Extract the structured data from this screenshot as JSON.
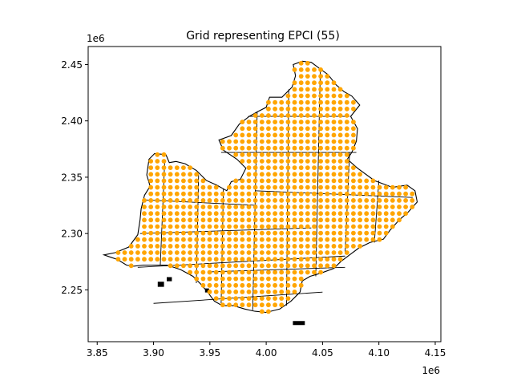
{
  "chart_data": {
    "type": "scatter",
    "title": "Grid representing EPCI (55)",
    "xlabel": "",
    "ylabel": "",
    "x_offset_label": "1e6",
    "y_offset_label": "1e6",
    "xlim": [
      3.842,
      4.155
    ],
    "ylim": [
      2.204,
      2.466
    ],
    "xticks": [
      3.85,
      3.9,
      3.95,
      4.0,
      4.05,
      4.1,
      4.15
    ],
    "xtick_labels": [
      "3.85",
      "3.90",
      "3.95",
      "4.00",
      "4.05",
      "4.10",
      "4.15"
    ],
    "yticks": [
      2.25,
      2.3,
      2.35,
      2.4,
      2.45
    ],
    "ytick_labels": [
      "2.25",
      "2.30",
      "2.35",
      "2.40",
      "2.45"
    ],
    "grid": false,
    "point_color": "#FFA500",
    "outline_color": "#000000",
    "outline": [
      [
        3.856,
        2.281
      ],
      [
        3.866,
        2.283
      ],
      [
        3.878,
        2.288
      ],
      [
        3.886,
        2.299
      ],
      [
        3.888,
        2.312
      ],
      [
        3.889,
        2.322
      ],
      [
        3.892,
        2.334
      ],
      [
        3.897,
        2.342
      ],
      [
        3.894,
        2.352
      ],
      [
        3.896,
        2.366
      ],
      [
        3.901,
        2.371
      ],
      [
        3.911,
        2.37
      ],
      [
        3.914,
        2.363
      ],
      [
        3.92,
        2.364
      ],
      [
        3.928,
        2.362
      ],
      [
        3.938,
        2.356
      ],
      [
        3.947,
        2.347
      ],
      [
        3.956,
        2.343
      ],
      [
        3.965,
        2.338
      ],
      [
        3.969,
        2.346
      ],
      [
        3.977,
        2.348
      ],
      [
        3.982,
        2.358
      ],
      [
        3.974,
        2.366
      ],
      [
        3.962,
        2.374
      ],
      [
        3.958,
        2.383
      ],
      [
        3.969,
        2.387
      ],
      [
        3.976,
        2.397
      ],
      [
        3.985,
        2.404
      ],
      [
        3.992,
        2.408
      ],
      [
        4.0,
        2.412
      ],
      [
        4.003,
        2.421
      ],
      [
        4.014,
        2.421
      ],
      [
        4.023,
        2.43
      ],
      [
        4.026,
        2.44
      ],
      [
        4.024,
        2.45
      ],
      [
        4.032,
        2.453
      ],
      [
        4.04,
        2.452
      ],
      [
        4.048,
        2.446
      ],
      [
        4.055,
        2.441
      ],
      [
        4.062,
        2.432
      ],
      [
        4.069,
        2.426
      ],
      [
        4.076,
        2.422
      ],
      [
        4.083,
        2.414
      ],
      [
        4.075,
        2.404
      ],
      [
        4.081,
        2.393
      ],
      [
        4.08,
        2.382
      ],
      [
        4.076,
        2.372
      ],
      [
        4.072,
        2.366
      ],
      [
        4.081,
        2.358
      ],
      [
        4.096,
        2.347
      ],
      [
        4.112,
        2.341
      ],
      [
        4.125,
        2.343
      ],
      [
        4.132,
        2.338
      ],
      [
        4.134,
        2.328
      ],
      [
        4.126,
        2.319
      ],
      [
        4.118,
        2.312
      ],
      [
        4.11,
        2.303
      ],
      [
        4.104,
        2.295
      ],
      [
        4.092,
        2.292
      ],
      [
        4.082,
        2.287
      ],
      [
        4.074,
        2.281
      ],
      [
        4.066,
        2.275
      ],
      [
        4.06,
        2.269
      ],
      [
        4.049,
        2.265
      ],
      [
        4.039,
        2.262
      ],
      [
        4.032,
        2.258
      ],
      [
        4.03,
        2.248
      ],
      [
        4.022,
        2.24
      ],
      [
        4.012,
        2.233
      ],
      [
        4.0,
        2.23
      ],
      [
        3.99,
        2.231
      ],
      [
        3.981,
        2.233
      ],
      [
        3.971,
        2.236
      ],
      [
        3.961,
        2.236
      ],
      [
        3.954,
        2.24
      ],
      [
        3.948,
        2.248
      ],
      [
        3.942,
        2.255
      ],
      [
        3.935,
        2.262
      ],
      [
        3.924,
        2.268
      ],
      [
        3.912,
        2.272
      ],
      [
        3.902,
        2.272
      ],
      [
        3.891,
        2.272
      ],
      [
        3.882,
        2.271
      ],
      [
        3.876,
        2.272
      ],
      [
        3.868,
        2.277
      ],
      [
        3.862,
        2.279
      ],
      [
        3.856,
        2.281
      ]
    ],
    "grid_lines": [
      [
        [
          3.89,
          2.33
        ],
        [
          3.992,
          2.325
        ]
      ],
      [
        [
          3.888,
          2.3
        ],
        [
          4.04,
          2.305
        ]
      ],
      [
        [
          3.886,
          2.27
        ],
        [
          4.07,
          2.28
        ]
      ],
      [
        [
          3.984,
          2.404
        ],
        [
          4.074,
          2.404
        ]
      ],
      [
        [
          3.96,
          2.372
        ],
        [
          4.08,
          2.372
        ]
      ],
      [
        [
          3.99,
          2.338
        ],
        [
          4.13,
          2.332
        ]
      ],
      [
        [
          3.95,
          2.266
        ],
        [
          4.07,
          2.27
        ]
      ],
      [
        [
          3.9,
          2.238
        ],
        [
          4.05,
          2.248
        ]
      ],
      [
        [
          3.91,
          2.366
        ],
        [
          3.906,
          2.272
        ]
      ],
      [
        [
          3.94,
          2.352
        ],
        [
          3.938,
          2.256
        ]
      ],
      [
        [
          3.962,
          2.34
        ],
        [
          3.96,
          2.238
        ]
      ],
      [
        [
          3.992,
          2.408
        ],
        [
          3.988,
          2.232
        ]
      ],
      [
        [
          4.02,
          2.428
        ],
        [
          4.018,
          2.236
        ]
      ],
      [
        [
          4.048,
          2.445
        ],
        [
          4.044,
          2.262
        ]
      ],
      [
        [
          4.074,
          2.372
        ],
        [
          4.07,
          2.282
        ]
      ],
      [
        [
          4.1,
          2.347
        ],
        [
          4.096,
          2.292
        ]
      ]
    ],
    "islands": [
      [
        [
          3.904,
          2.253
        ],
        [
          3.909,
          2.253
        ],
        [
          3.909,
          2.257
        ],
        [
          3.904,
          2.257
        ]
      ],
      [
        [
          3.912,
          2.258
        ],
        [
          3.916,
          2.258
        ],
        [
          3.916,
          2.261
        ],
        [
          3.912,
          2.261
        ]
      ],
      [
        [
          4.024,
          2.219
        ],
        [
          4.034,
          2.219
        ],
        [
          4.034,
          2.222
        ],
        [
          4.024,
          2.222
        ]
      ],
      [
        [
          3.946,
          2.248
        ],
        [
          3.949,
          2.248
        ],
        [
          3.949,
          2.251
        ],
        [
          3.946,
          2.251
        ]
      ]
    ]
  }
}
